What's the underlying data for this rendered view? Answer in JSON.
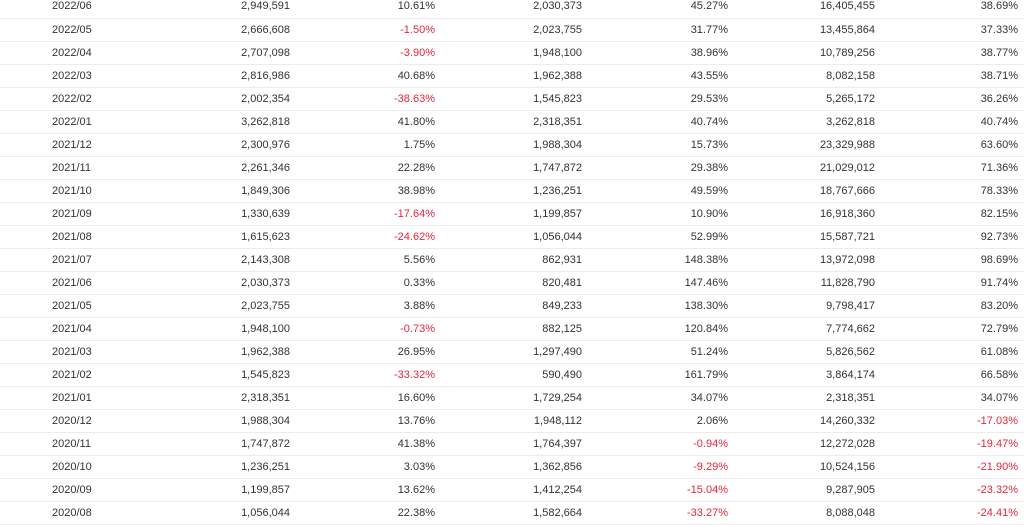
{
  "colors": {
    "text": "#333333",
    "negative": "#e8253a",
    "divider": "#ececec"
  },
  "rows": [
    [
      "2022/06",
      "2,949,591",
      "10.61%",
      "2,030,373",
      "45.27%",
      "16,405,455",
      "38.69%"
    ],
    [
      "2022/05",
      "2,666,608",
      "-1.50%",
      "2,023,755",
      "31.77%",
      "13,455,864",
      "37.33%"
    ],
    [
      "2022/04",
      "2,707,098",
      "-3.90%",
      "1,948,100",
      "38.96%",
      "10,789,256",
      "38.77%"
    ],
    [
      "2022/03",
      "2,816,986",
      "40.68%",
      "1,962,388",
      "43.55%",
      "8,082,158",
      "38.71%"
    ],
    [
      "2022/02",
      "2,002,354",
      "-38.63%",
      "1,545,823",
      "29.53%",
      "5,265,172",
      "36.26%"
    ],
    [
      "2022/01",
      "3,262,818",
      "41.80%",
      "2,318,351",
      "40.74%",
      "3,262,818",
      "40.74%"
    ],
    [
      "2021/12",
      "2,300,976",
      "1.75%",
      "1,988,304",
      "15.73%",
      "23,329,988",
      "63.60%"
    ],
    [
      "2021/11",
      "2,261,346",
      "22.28%",
      "1,747,872",
      "29.38%",
      "21,029,012",
      "71.36%"
    ],
    [
      "2021/10",
      "1,849,306",
      "38.98%",
      "1,236,251",
      "49.59%",
      "18,767,666",
      "78.33%"
    ],
    [
      "2021/09",
      "1,330,639",
      "-17.64%",
      "1,199,857",
      "10.90%",
      "16,918,360",
      "82.15%"
    ],
    [
      "2021/08",
      "1,615,623",
      "-24.62%",
      "1,056,044",
      "52.99%",
      "15,587,721",
      "92.73%"
    ],
    [
      "2021/07",
      "2,143,308",
      "5.56%",
      "862,931",
      "148.38%",
      "13,972,098",
      "98.69%"
    ],
    [
      "2021/06",
      "2,030,373",
      "0.33%",
      "820,481",
      "147.46%",
      "11,828,790",
      "91.74%"
    ],
    [
      "2021/05",
      "2,023,755",
      "3.88%",
      "849,233",
      "138.30%",
      "9,798,417",
      "83.20%"
    ],
    [
      "2021/04",
      "1,948,100",
      "-0.73%",
      "882,125",
      "120.84%",
      "7,774,662",
      "72.79%"
    ],
    [
      "2021/03",
      "1,962,388",
      "26.95%",
      "1,297,490",
      "51.24%",
      "5,826,562",
      "61.08%"
    ],
    [
      "2021/02",
      "1,545,823",
      "-33.32%",
      "590,490",
      "161.79%",
      "3,864,174",
      "66.58%"
    ],
    [
      "2021/01",
      "2,318,351",
      "16.60%",
      "1,729,254",
      "34.07%",
      "2,318,351",
      "34.07%"
    ],
    [
      "2020/12",
      "1,988,304",
      "13.76%",
      "1,948,112",
      "2.06%",
      "14,260,332",
      "-17.03%"
    ],
    [
      "2020/11",
      "1,747,872",
      "41.38%",
      "1,764,397",
      "-0.94%",
      "12,272,028",
      "-19.47%"
    ],
    [
      "2020/10",
      "1,236,251",
      "3.03%",
      "1,362,856",
      "-9.29%",
      "10,524,156",
      "-21.90%"
    ],
    [
      "2020/09",
      "1,199,857",
      "13.62%",
      "1,412,254",
      "-15.04%",
      "9,287,905",
      "-23.32%"
    ],
    [
      "2020/08",
      "1,056,044",
      "22.38%",
      "1,582,664",
      "-33.27%",
      "8,088,048",
      "-24.41%"
    ]
  ]
}
